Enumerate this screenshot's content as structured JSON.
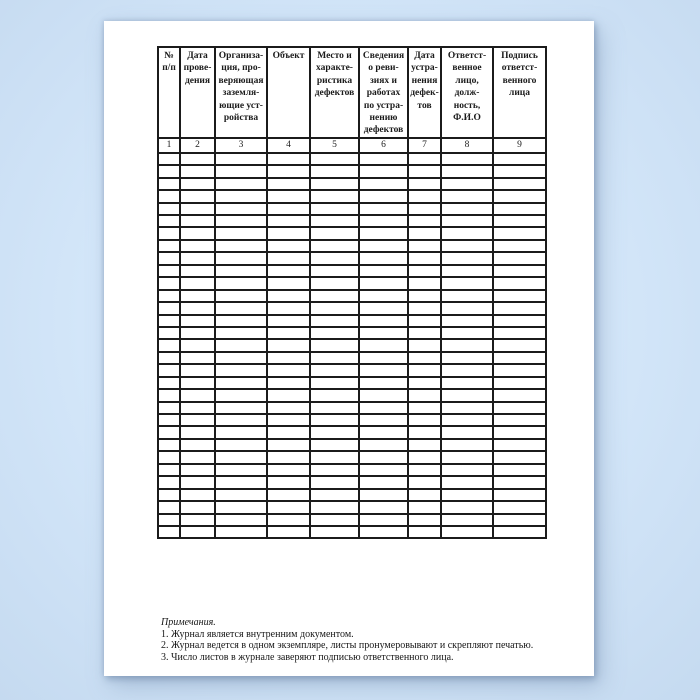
{
  "page": {
    "background_color": "#d3e6f9",
    "paper_color": "#ffffff",
    "border_color": "#1b1b1b"
  },
  "table": {
    "headers": [
      "№\nп/п",
      "Дата\nпрове-\nдения",
      "Организа-\nция, про-\nверяющая\nзаземля-\nющие уст-\nройства",
      "Объект",
      "Место и\nхаракте-\nристика\nдефектов",
      "Сведения\nо реви-\nзиях и\nработах\nпо устра-\nнению\nдефектов",
      "Дата\nустра-\nнения\nдефек-\nтов",
      "Ответст-\nвенное\nлицо,\nдолж-\nность,\nФ.И.О",
      "Подпись\nответст-\nвенного\nлица"
    ],
    "number_row": [
      "1",
      "2",
      "3",
      "4",
      "5",
      "6",
      "7",
      "8",
      "9"
    ],
    "empty_row_count": 31
  },
  "notes": {
    "title": "Примечания.",
    "items": [
      "1. Журнал является внутренним документом.",
      "2. Журнал ведется в одном экземпляре, листы пронумеровывают и скрепляют печатью.",
      "3. Число листов в журнале заверяют подписью ответственного лица."
    ]
  }
}
